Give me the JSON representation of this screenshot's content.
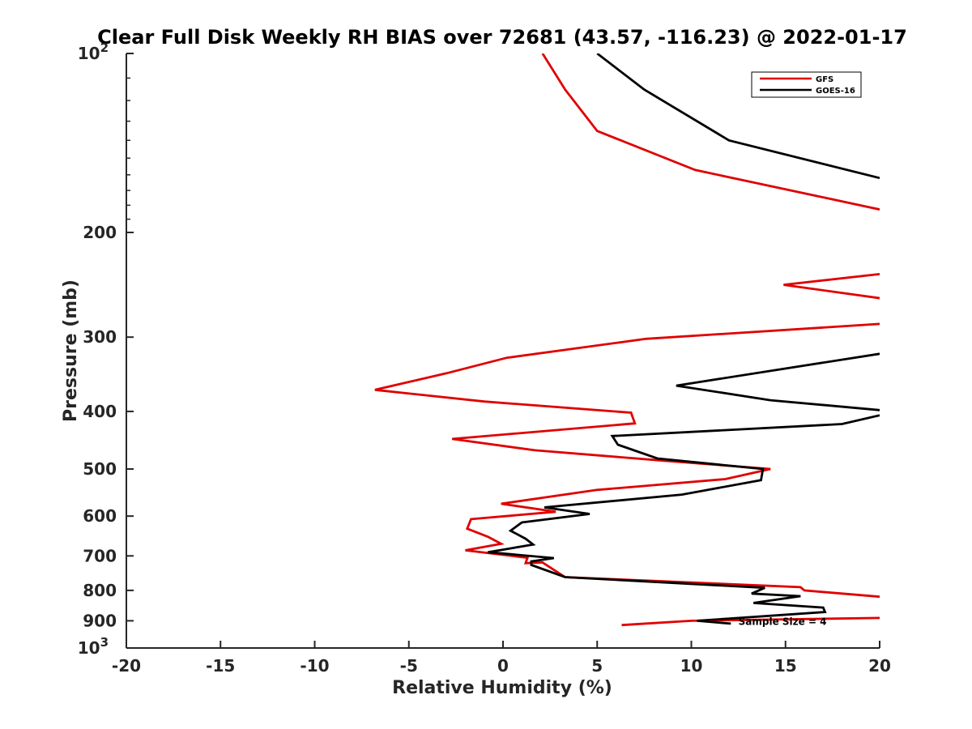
{
  "chart_data": {
    "type": "line",
    "title": "Clear Full Disk Weekly RH BIAS over 72681 (43.57, -116.23) @ 2022-01-17",
    "xlabel": "Relative Humidity (%)",
    "ylabel": "Pressure (mb)",
    "xlim": [
      -20,
      20
    ],
    "ylim": [
      100,
      1000
    ],
    "y_scale": "log",
    "y_reversed": true,
    "grid": false,
    "legend_position": "top-right",
    "x_ticks": [
      "-20",
      "-15",
      "-10",
      "-5",
      "0",
      "5",
      "10",
      "15",
      "20"
    ],
    "y_ticks": [
      {
        "value": 100,
        "label": "10",
        "sup": "2"
      },
      {
        "value": 200,
        "label": "200",
        "sup": ""
      },
      {
        "value": 300,
        "label": "300",
        "sup": ""
      },
      {
        "value": 400,
        "label": "400",
        "sup": ""
      },
      {
        "value": 500,
        "label": "500",
        "sup": ""
      },
      {
        "value": 600,
        "label": "600",
        "sup": ""
      },
      {
        "value": 700,
        "label": "700",
        "sup": ""
      },
      {
        "value": 800,
        "label": "800",
        "sup": ""
      },
      {
        "value": 900,
        "label": "900",
        "sup": ""
      },
      {
        "value": 1000,
        "label": "10",
        "sup": "3"
      }
    ],
    "series": [
      {
        "name": "GFS",
        "color": "#e00000",
        "segments": [
          [
            [
              2.1,
              100
            ],
            [
              3.3,
              115
            ],
            [
              5.0,
              135
            ],
            [
              10.2,
              157
            ],
            [
              20,
              183
            ]
          ],
          [
            [
              20,
              235
            ],
            [
              14.9,
              245
            ],
            [
              20,
              258
            ]
          ],
          [
            [
              20,
              285
            ],
            [
              7.6,
              302
            ],
            [
              0.2,
              325
            ],
            [
              -3.0,
              345
            ],
            [
              -6.8,
              368
            ],
            [
              -1.0,
              385
            ],
            [
              6.8,
              402
            ],
            [
              7.0,
              419
            ],
            [
              -2.7,
              445
            ],
            [
              1.7,
              465
            ],
            [
              8.5,
              484
            ],
            [
              14.2,
              500
            ],
            [
              11.8,
              520
            ],
            [
              5.0,
              542
            ],
            [
              -0.1,
              572
            ],
            [
              2.8,
              590
            ],
            [
              -1.7,
              607
            ],
            [
              -1.9,
              630
            ],
            [
              -0.8,
              650
            ],
            [
              -0.1,
              668
            ],
            [
              -2.0,
              685
            ],
            [
              1.3,
              705
            ],
            [
              1.2,
              720
            ],
            [
              2.1,
              718
            ],
            [
              3.3,
              760
            ],
            [
              15.8,
              790
            ],
            [
              16.0,
              800
            ],
            [
              20,
              820
            ]
          ],
          [
            [
              20,
              890
            ],
            [
              10.0,
              900
            ],
            [
              6.3,
              915
            ]
          ]
        ]
      },
      {
        "name": "GOES-16",
        "color": "#000000",
        "segments": [
          [
            [
              5.0,
              100
            ],
            [
              7.5,
              115
            ],
            [
              12.0,
              140
            ],
            [
              20,
              162
            ]
          ],
          [
            [
              20,
              320
            ],
            [
              9.2,
              362
            ],
            [
              14.2,
              383
            ],
            [
              20,
              398
            ]
          ],
          [
            [
              20,
              406
            ],
            [
              18.0,
              420
            ],
            [
              5.8,
              440
            ],
            [
              6.1,
              455
            ],
            [
              8.2,
              480
            ],
            [
              13.8,
              500
            ],
            [
              13.7,
              522
            ],
            [
              9.5,
              552
            ],
            [
              2.2,
              580
            ],
            [
              4.6,
              595
            ],
            [
              1.0,
              615
            ],
            [
              0.4,
              635
            ],
            [
              1.2,
              655
            ],
            [
              1.6,
              670
            ],
            [
              -0.8,
              690
            ],
            [
              2.7,
              706
            ],
            [
              1.5,
              715
            ],
            [
              1.5,
              725
            ],
            [
              3.3,
              760
            ],
            [
              13.9,
              792
            ],
            [
              13.2,
              810
            ],
            [
              15.8,
              818
            ],
            [
              13.3,
              840
            ],
            [
              17.0,
              855
            ],
            [
              17.1,
              870
            ],
            [
              10.3,
              900
            ],
            [
              12.1,
              910
            ]
          ]
        ]
      }
    ],
    "annotations": [
      {
        "text": "Sample Size = 4",
        "x": 12.5,
        "y": 900
      }
    ]
  }
}
